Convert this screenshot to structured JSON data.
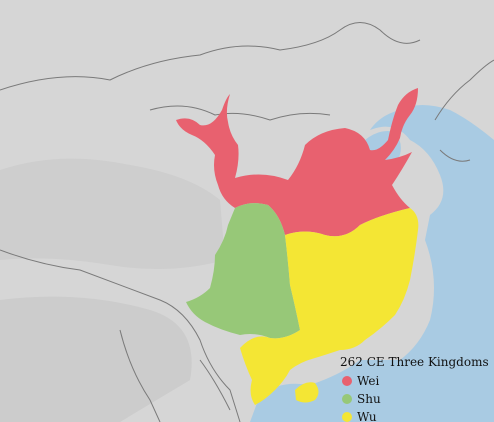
{
  "legend": {
    "title": "262 CE Three Kingdoms",
    "items": [
      {
        "label": "Wei",
        "color": "#e8616f"
      },
      {
        "label": "Shu",
        "color": "#97c878"
      },
      {
        "label": "Wu",
        "color": "#f4e634"
      }
    ]
  },
  "colors": {
    "land": "#d6d6d6",
    "sea": "#a9cbe3",
    "border": "#7a7a7a"
  }
}
